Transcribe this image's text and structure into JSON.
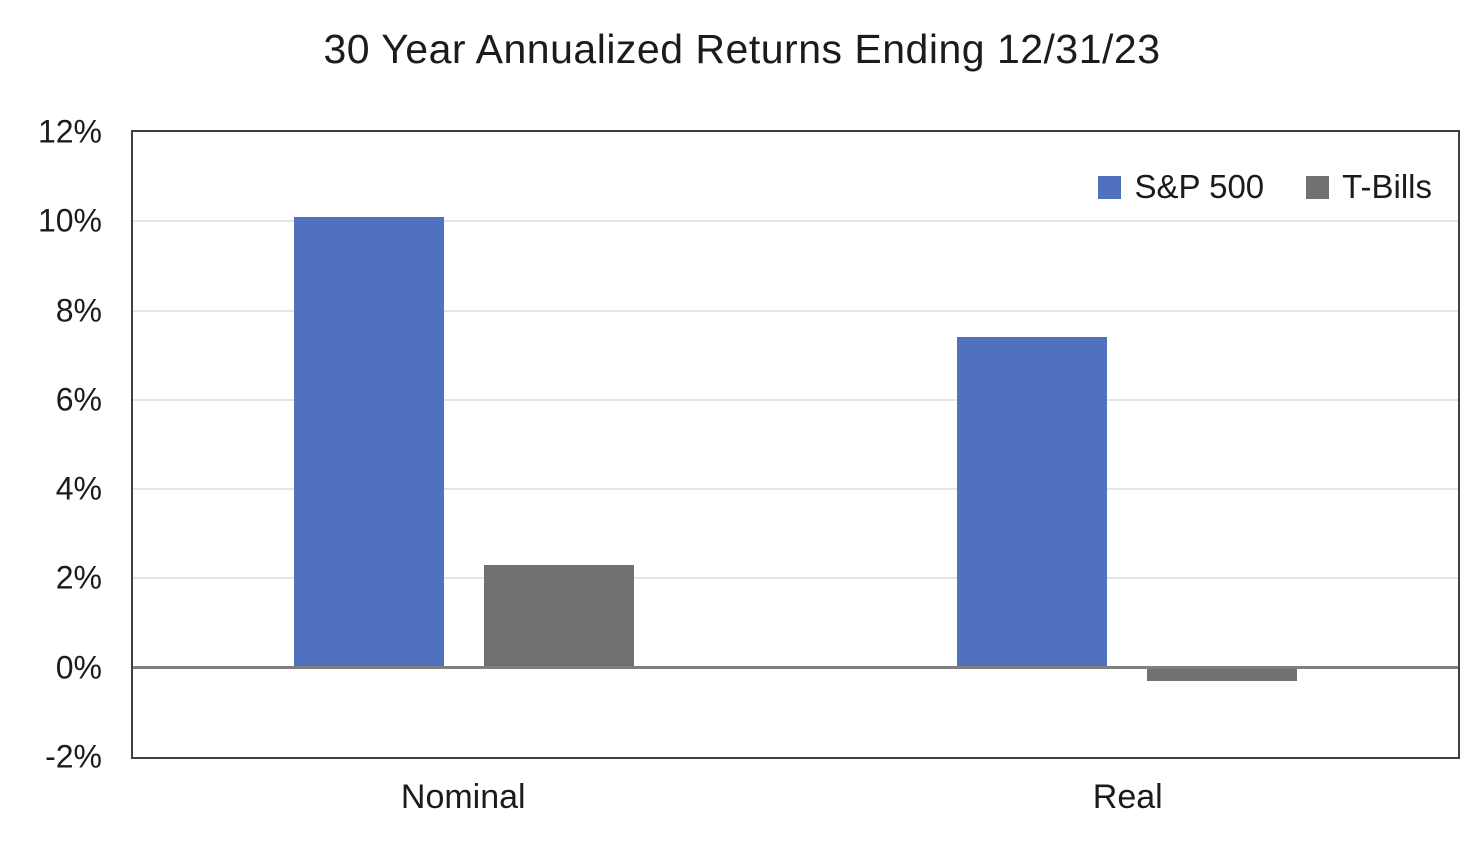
{
  "chart_data": {
    "type": "bar",
    "title": "30 Year Annualized Returns Ending 12/31/23",
    "categories": [
      "Nominal",
      "Real"
    ],
    "series": [
      {
        "name": "S&P 500",
        "color": "#4F71BE",
        "values": [
          10.1,
          7.4
        ]
      },
      {
        "name": "T-Bills",
        "color": "#737070",
        "values": [
          2.3,
          -0.3
        ]
      }
    ],
    "unit": "%",
    "ylim": [
      -2,
      12
    ],
    "y_ticks": [
      {
        "value": 12,
        "label": "12%"
      },
      {
        "value": 10,
        "label": "10%"
      },
      {
        "value": 8,
        "label": "8%"
      },
      {
        "value": 6,
        "label": "6%"
      },
      {
        "value": 4,
        "label": "4%"
      },
      {
        "value": 2,
        "label": "2%"
      },
      {
        "value": 0,
        "label": "0%"
      },
      {
        "value": -2,
        "label": "-2%"
      }
    ],
    "grid": "horizontal",
    "legend_position": "top-right",
    "styles": {
      "gridline_color": "#E4E4E4",
      "plot_border_color": "#404040",
      "zero_line_color": "#7F7F7F",
      "text_color": "#1B1B1B",
      "background": "#FFFFFF"
    }
  }
}
